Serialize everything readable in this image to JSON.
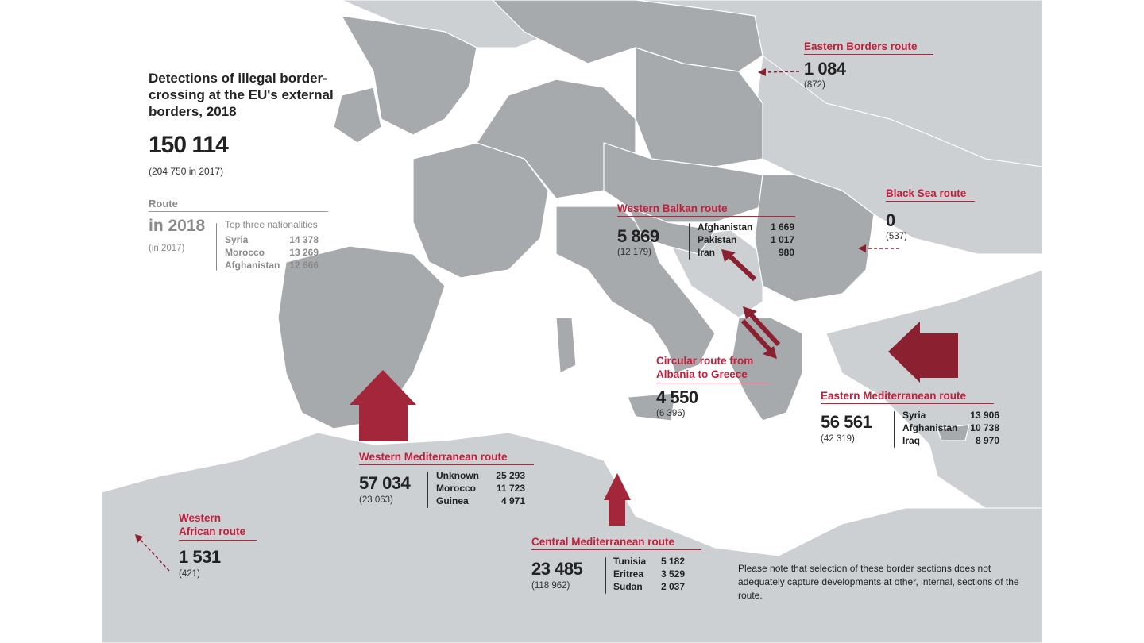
{
  "title": "Detections of illegal border-crossing at the EU's external borders, 2018",
  "total": "150 114",
  "total_prev": "(204 750 in 2017)",
  "legend": {
    "route_label": "Route",
    "year_label": "in 2018",
    "prev_label": "(in 2017)",
    "top_label": "Top three nationalities",
    "items": [
      {
        "name": "Syria",
        "value": "14 378"
      },
      {
        "name": "Morocco",
        "value": "13 269"
      },
      {
        "name": "Afghanistan",
        "value": "12 666"
      }
    ]
  },
  "routes": {
    "eastern_borders": {
      "name": "Eastern Borders route",
      "value": "1 084",
      "prev": "(872)"
    },
    "black_sea": {
      "name": "Black Sea route",
      "value": "0",
      "prev": "(537)"
    },
    "western_balkan": {
      "name": "Western Balkan route",
      "value": "5 869",
      "prev": "(12 179)",
      "nationalities": [
        {
          "name": "Afghanistan",
          "value": "1 669"
        },
        {
          "name": "Pakistan",
          "value": "1 017"
        },
        {
          "name": "Iran",
          "value": "980"
        }
      ]
    },
    "circular": {
      "name_line1": "Circular route from",
      "name_line2": "Albania to Greece",
      "value": "4 550",
      "prev": "(6 396)"
    },
    "eastern_med": {
      "name": "Eastern Mediterranean route",
      "value": "56 561",
      "prev": "(42 319)",
      "nationalities": [
        {
          "name": "Syria",
          "value": "13 906"
        },
        {
          "name": "Afghanistan",
          "value": "10 738"
        },
        {
          "name": "Iraq",
          "value": "8 970"
        }
      ]
    },
    "western_med": {
      "name": "Western Mediterranean route",
      "value": "57 034",
      "prev": "(23 063)",
      "nationalities": [
        {
          "name": "Unknown",
          "value": "25 293"
        },
        {
          "name": "Morocco",
          "value": "11 723"
        },
        {
          "name": "Guinea",
          "value": "4 971"
        }
      ]
    },
    "western_african": {
      "name_line1": "Western",
      "name_line2": "African route",
      "value": "1 531",
      "prev": "(421)"
    },
    "central_med": {
      "name": "Central Mediterranean route",
      "value": "23 485",
      "prev": "(118 962)",
      "nationalities": [
        {
          "name": "Tunisia",
          "value": "5 182"
        },
        {
          "name": "Eritrea",
          "value": "3 529"
        },
        {
          "name": "Sudan",
          "value": "2 037"
        }
      ]
    }
  },
  "note": "Please note that selection of these border sections does not adequately capture developments at other, internal, sections of the route.",
  "colors": {
    "sea": "#ffffff",
    "eu_land": "#a7aaad",
    "non_eu_land": "#cdd0d3",
    "border": "#ffffff",
    "accent": "#c41e3a",
    "arrow_dark": "#7a1a2a"
  }
}
